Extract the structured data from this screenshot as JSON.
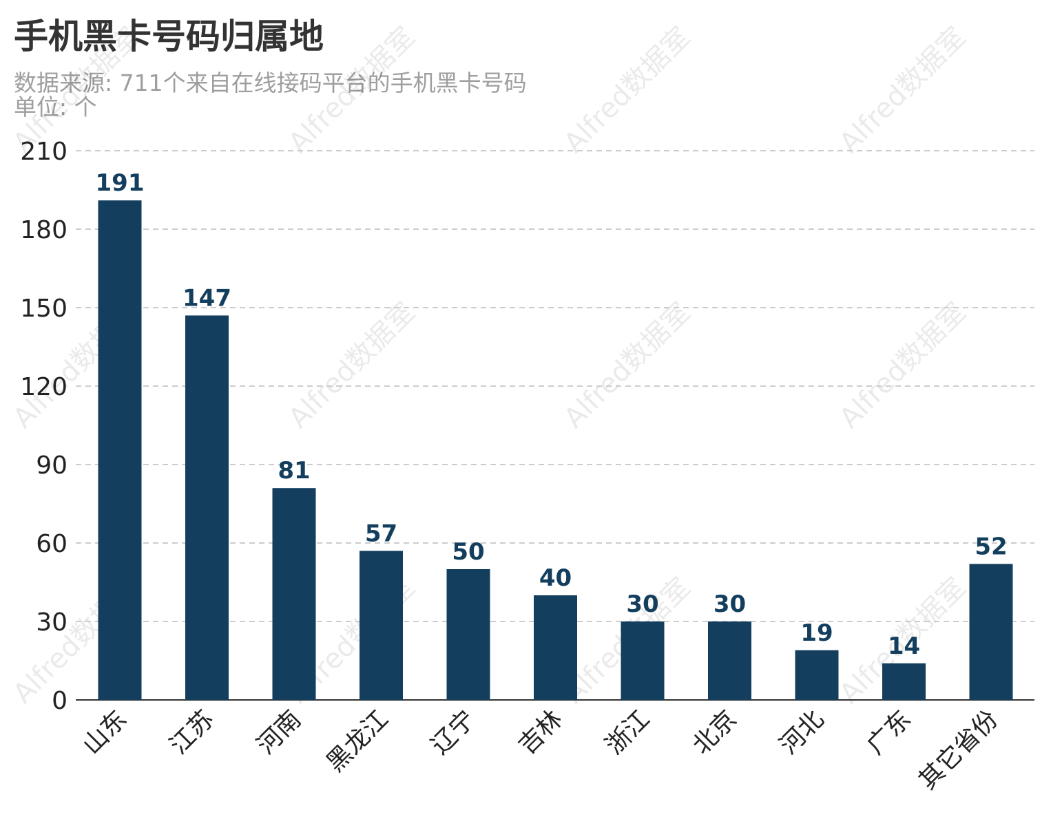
{
  "title": "手机黑卡号码归属地",
  "subtitle": "数据来源: 711个来自在线接码平台的手机黑卡号码",
  "unit_label": "单位: 个",
  "watermark": "Alfred数据室",
  "colors": {
    "bar": "#133e5e",
    "data_label": "#133e5e",
    "grid": "#cccccc",
    "axis": "#333333",
    "subtitle": "#9e9e9e"
  },
  "chart_data": {
    "type": "bar",
    "categories": [
      "山东",
      "江苏",
      "河南",
      "黑龙江",
      "辽宁",
      "吉林",
      "浙江",
      "北京",
      "河北",
      "广东",
      "其它省份"
    ],
    "values": [
      191,
      147,
      81,
      57,
      50,
      40,
      30,
      30,
      19,
      14,
      52
    ],
    "title": "手机黑卡号码归属地",
    "subtitle": "数据来源: 711个来自在线接码平台的手机黑卡号码",
    "ylabel": "",
    "xlabel": "",
    "ylim": [
      0,
      210
    ],
    "yticks": [
      0,
      30,
      60,
      90,
      120,
      150,
      180,
      210
    ],
    "grid": "horizontal-dashed",
    "data_labels": true,
    "x_label_rotation": -45
  }
}
